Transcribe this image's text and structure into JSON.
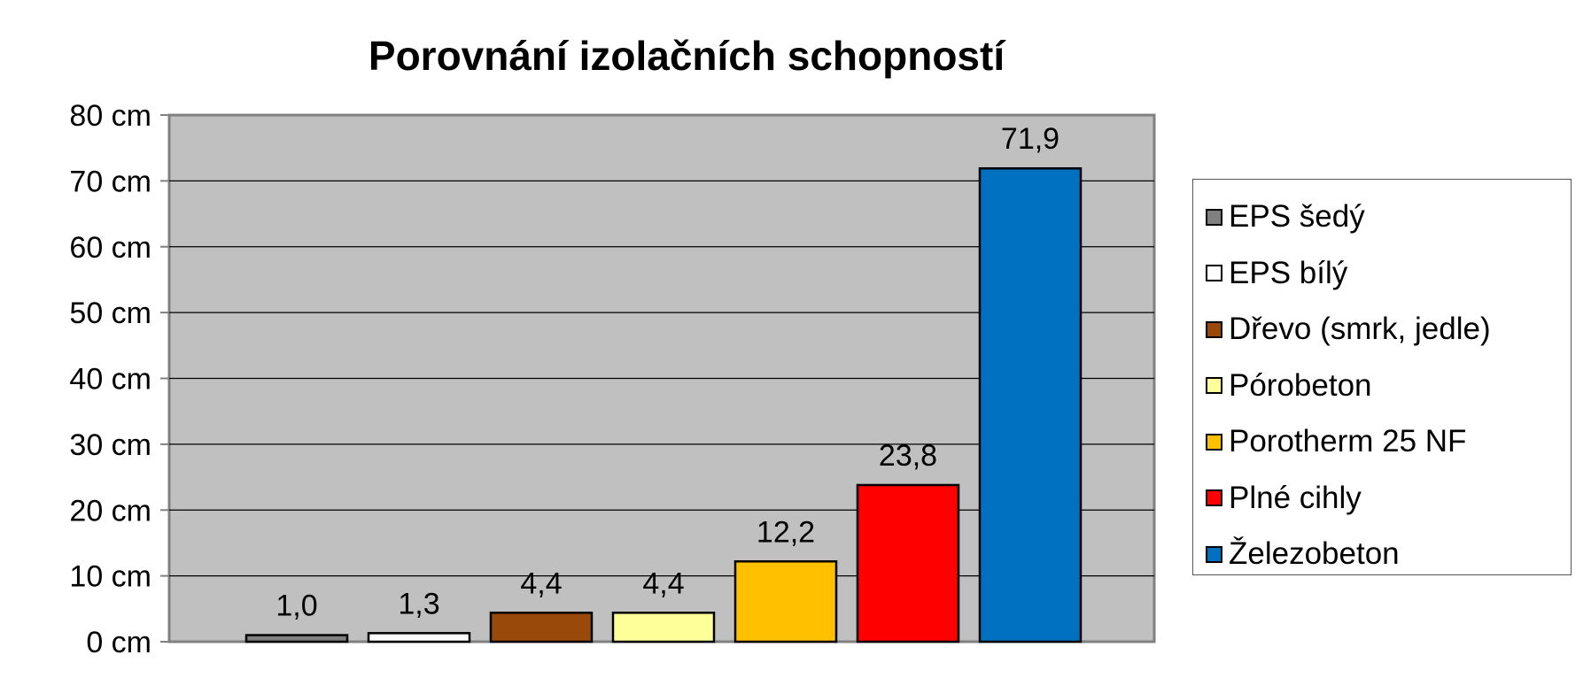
{
  "chart_data": {
    "type": "bar",
    "title": "Porovnání izolačních schopností",
    "xlabel": "",
    "ylabel": "",
    "ylim": [
      0,
      80
    ],
    "y_ticks": [
      0,
      10,
      20,
      30,
      40,
      50,
      60,
      70,
      80
    ],
    "y_tick_labels": [
      "0 cm",
      "10 cm",
      "20 cm",
      "30 cm",
      "40 cm",
      "50 cm",
      "60 cm",
      "70 cm",
      "80 cm"
    ],
    "grid": true,
    "plot_background": "#c0c0c0",
    "legend_position": "right",
    "categories": [
      "EPS šedý",
      "EPS bílý",
      "Dřevo (smrk, jedle)",
      "Pórobeton",
      "Porotherm 25 NF",
      "Plné cihly",
      "Železobeton"
    ],
    "values": [
      1.0,
      1.3,
      4.4,
      4.4,
      12.2,
      23.8,
      71.9
    ],
    "data_labels": [
      "1,0",
      "1,3",
      "4,4",
      "4,4",
      "12,2",
      "23,8",
      "71,9"
    ],
    "colors": [
      "#808080",
      "#ffffff",
      "#994a0a",
      "#ffff99",
      "#ffc000",
      "#ff0000",
      "#0070c0"
    ]
  }
}
